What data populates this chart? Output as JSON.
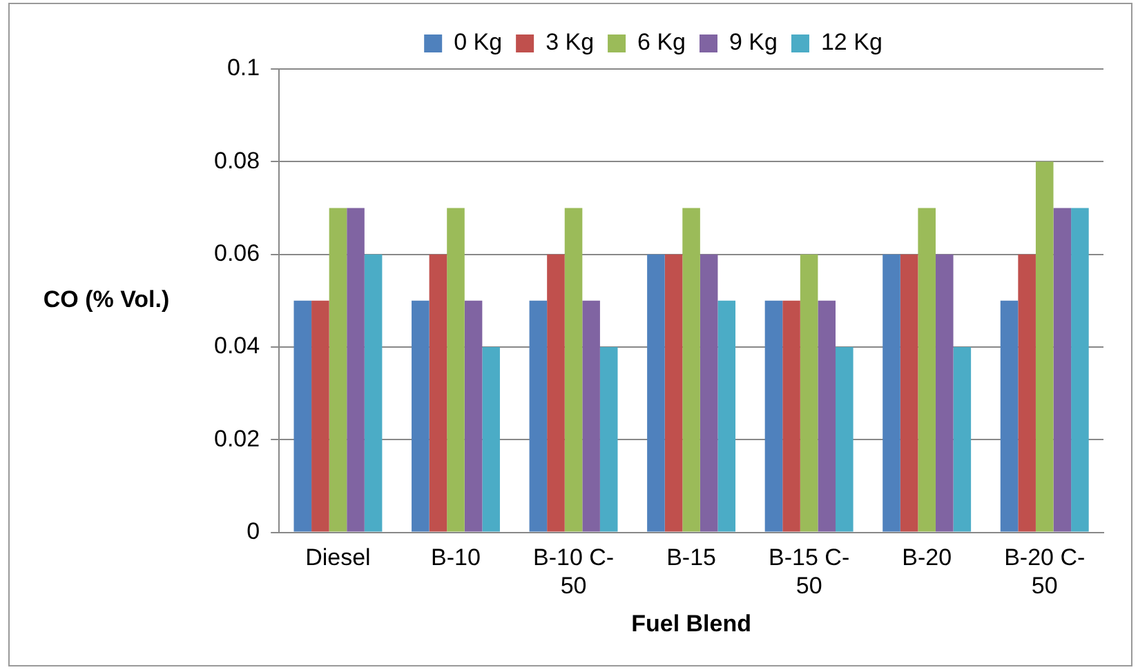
{
  "chart_data": {
    "type": "bar",
    "xlabel": "Fuel Blend",
    "ylabel": "CO (% Vol.)",
    "categories": [
      "Diesel",
      "B-10",
      "B-10 C-50",
      "B-15",
      "B-15 C-50",
      "B-20",
      "B-20 C-50"
    ],
    "series": [
      {
        "name": "0 Kg",
        "color": "#4f81bd",
        "values": [
          0.05,
          0.05,
          0.05,
          0.06,
          0.05,
          0.06,
          0.05
        ]
      },
      {
        "name": "3 Kg",
        "color": "#c0504d",
        "values": [
          0.05,
          0.06,
          0.06,
          0.06,
          0.05,
          0.06,
          0.06
        ]
      },
      {
        "name": "6 Kg",
        "color": "#9bbb59",
        "values": [
          0.07,
          0.07,
          0.07,
          0.07,
          0.06,
          0.07,
          0.08
        ]
      },
      {
        "name": "9 Kg",
        "color": "#8064a2",
        "values": [
          0.07,
          0.05,
          0.05,
          0.06,
          0.05,
          0.06,
          0.07
        ]
      },
      {
        "name": "12 Kg",
        "color": "#4bacc6",
        "values": [
          0.06,
          0.04,
          0.04,
          0.05,
          0.04,
          0.04,
          0.07
        ]
      }
    ],
    "ylim": [
      0,
      0.1
    ],
    "yticks": [
      0,
      0.02,
      0.04,
      0.06,
      0.08,
      0.1
    ],
    "grid": "y",
    "legend": "top"
  }
}
